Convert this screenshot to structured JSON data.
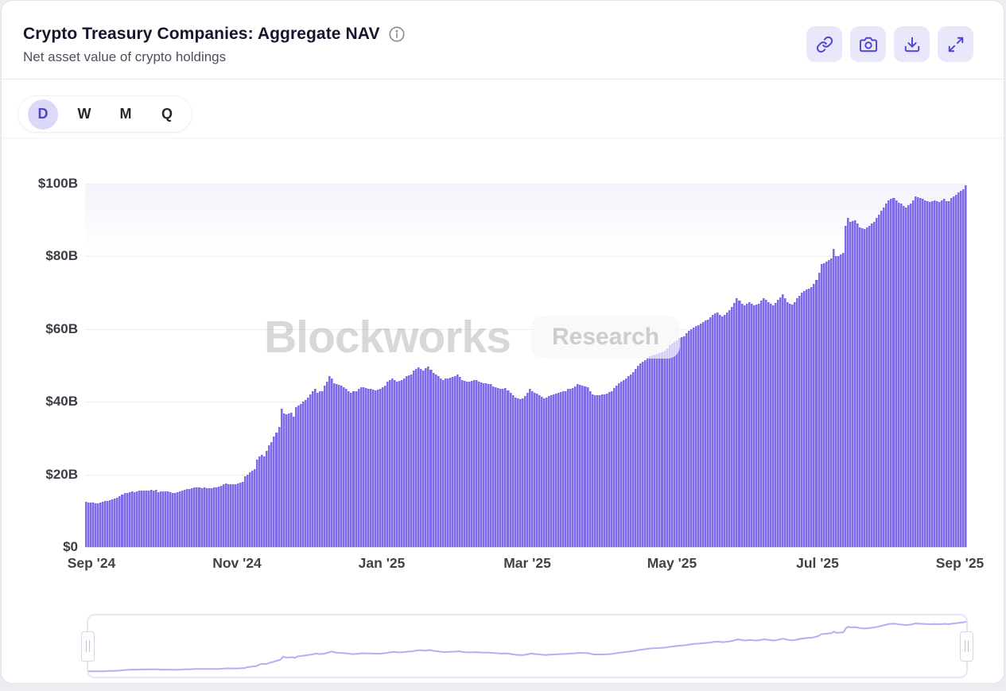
{
  "header": {
    "title": "Crypto Treasury Companies: Aggregate NAV",
    "subtitle": "Net asset value of crypto holdings",
    "info_icon": "info-circle-icon",
    "toolbar": [
      {
        "name": "copy-link",
        "icon": "link-icon"
      },
      {
        "name": "screenshot",
        "icon": "camera-icon"
      },
      {
        "name": "export",
        "icon": "download-tray-icon"
      },
      {
        "name": "fullscreen",
        "icon": "expand-arrows-icon"
      }
    ]
  },
  "interval_selector": {
    "options": [
      "D",
      "W",
      "M",
      "Q"
    ],
    "selected": "D"
  },
  "watermark": {
    "brand": "Blockworks",
    "suffix": "Research"
  },
  "colors": {
    "bar": "#7c6ae8",
    "accent": "#5142cf",
    "toolbar_bg": "#e9e7fa",
    "selected_pill": "#dcd8f7",
    "sparkline": "#b7adf0",
    "gridline": "#ededf2"
  },
  "chart_data": {
    "type": "bar",
    "title": "Crypto Treasury Companies: Aggregate NAV",
    "subtitle": "Net asset value of crypto holdings",
    "unit": "$B",
    "ylim": [
      0,
      100
    ],
    "yticks": [
      "$100B",
      "$80B",
      "$60B",
      "$40B",
      "$20B",
      "$0"
    ],
    "xticks": [
      "Sep '24",
      "Nov '24",
      "Jan '25",
      "Mar '25",
      "May '25",
      "Jul '25",
      "Sep '25"
    ],
    "x_start": "2024-09-01",
    "x_end": "2025-09-01",
    "frequency": "daily",
    "grid": "horizontal",
    "legend": "none",
    "values": [
      12.4,
      12.3,
      12.2,
      12.2,
      12.1,
      12.1,
      12.3,
      12.5,
      12.7,
      12.8,
      13.0,
      13.1,
      13.3,
      13.6,
      14.0,
      14.4,
      14.8,
      15.0,
      15.2,
      15.3,
      15.2,
      15.4,
      15.5,
      15.5,
      15.6,
      15.5,
      15.6,
      15.7,
      15.6,
      15.7,
      15.2,
      15.3,
      15.4,
      15.3,
      15.3,
      15.1,
      15.0,
      15.0,
      15.2,
      15.4,
      15.6,
      15.8,
      16.0,
      16.0,
      16.3,
      16.5,
      16.4,
      16.4,
      16.3,
      16.4,
      16.2,
      16.2,
      16.3,
      16.4,
      16.5,
      16.6,
      16.9,
      17.3,
      17.5,
      17.3,
      17.2,
      17.3,
      17.3,
      17.5,
      17.8,
      18.0,
      19.5,
      20.0,
      20.5,
      21.0,
      21.5,
      24.0,
      25.0,
      25.3,
      25.0,
      26.5,
      28.0,
      29.0,
      30.5,
      31.5,
      33.0,
      38.0,
      36.8,
      36.5,
      36.7,
      37.0,
      36.0,
      38.5,
      39.0,
      39.5,
      40.0,
      40.5,
      41.2,
      42.0,
      42.8,
      43.5,
      42.5,
      42.8,
      43.0,
      44.5,
      45.5,
      47.0,
      46.5,
      45.0,
      44.8,
      44.6,
      44.5,
      44.0,
      43.5,
      43.0,
      42.5,
      42.8,
      43.0,
      43.5,
      44.0,
      43.9,
      43.8,
      43.6,
      43.5,
      43.4,
      43.2,
      43.3,
      43.5,
      44.0,
      44.5,
      45.5,
      46.0,
      46.5,
      46.0,
      45.5,
      45.7,
      46.0,
      46.5,
      47.0,
      47.2,
      47.5,
      48.5,
      49.0,
      49.5,
      49.0,
      48.5,
      49.2,
      49.7,
      48.8,
      48.0,
      47.5,
      47.0,
      46.5,
      46.0,
      46.3,
      46.5,
      46.7,
      46.8,
      47.0,
      47.5,
      46.8,
      46.0,
      45.7,
      45.5,
      45.6,
      45.8,
      46.0,
      45.9,
      45.5,
      45.2,
      45.1,
      45.0,
      44.9,
      44.8,
      44.3,
      44.0,
      43.7,
      43.5,
      43.6,
      43.8,
      43.2,
      42.5,
      41.8,
      41.2,
      41.0,
      40.8,
      41.0,
      41.5,
      42.5,
      43.5,
      43.0,
      42.5,
      42.2,
      41.8,
      41.4,
      41.0,
      41.2,
      41.5,
      41.8,
      42.0,
      42.2,
      42.5,
      42.6,
      42.8,
      43.0,
      43.5,
      43.6,
      43.8,
      44.2,
      44.8,
      44.6,
      44.5,
      44.3,
      44.0,
      43.0,
      42.0,
      41.9,
      41.8,
      41.9,
      42.0,
      42.1,
      42.2,
      42.6,
      43.0,
      43.8,
      44.5,
      45.0,
      45.5,
      46.0,
      46.5,
      47.0,
      47.5,
      48.2,
      49.0,
      49.8,
      50.5,
      51.0,
      51.5,
      52.0,
      52.5,
      52.8,
      53.0,
      53.2,
      53.5,
      53.7,
      54.0,
      54.8,
      55.5,
      56.0,
      56.5,
      57.0,
      57.5,
      57.8,
      58.0,
      58.8,
      59.5,
      60.0,
      60.5,
      60.8,
      61.0,
      61.5,
      62.0,
      62.3,
      62.5,
      63.2,
      64.0,
      64.3,
      64.5,
      64.0,
      63.5,
      64.0,
      64.5,
      65.2,
      66.0,
      67.2,
      68.5,
      67.8,
      67.0,
      66.5,
      67.0,
      67.5,
      67.0,
      66.5,
      66.8,
      67.0,
      67.8,
      68.5,
      68.0,
      67.5,
      67.0,
      66.5,
      67.2,
      68.0,
      68.8,
      69.5,
      68.5,
      67.5,
      67.0,
      66.8,
      67.5,
      68.5,
      69.2,
      70.0,
      70.5,
      71.0,
      71.2,
      71.5,
      72.5,
      73.5,
      75.5,
      78.0,
      78.2,
      78.5,
      79.0,
      79.5,
      82.0,
      80.0,
      80.2,
      80.5,
      81.0,
      88.5,
      90.5,
      89.5,
      89.8,
      90.0,
      89.0,
      88.0,
      87.8,
      87.5,
      88.0,
      88.5,
      89.0,
      89.5,
      90.5,
      91.5,
      92.5,
      93.5,
      94.5,
      95.5,
      95.8,
      96.0,
      95.5,
      94.8,
      94.5,
      93.8,
      93.5,
      94.0,
      94.5,
      95.5,
      96.5,
      96.2,
      96.0,
      95.8,
      95.5,
      95.2,
      95.0,
      95.3,
      95.5,
      95.2,
      95.0,
      95.5,
      95.8,
      95.3,
      95.2,
      96.0,
      96.5,
      97.0,
      97.5,
      98.0,
      98.5,
      99.5
    ]
  },
  "range_selector": {
    "type": "brush",
    "selection": "full-range",
    "left_handle": "start",
    "right_handle": "end"
  }
}
